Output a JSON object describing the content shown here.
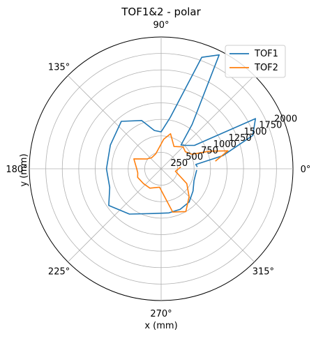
{
  "chart_data": {
    "type": "line",
    "projection": "polar",
    "title": "TOF1&2 - polar",
    "xlabel": "x (mm)",
    "ylabel": "y (mm)",
    "r_range": [
      0,
      2000
    ],
    "r_ticks": [
      250,
      500,
      750,
      1000,
      1250,
      1500,
      1750,
      2000
    ],
    "r_tick_labels": [
      "250",
      "500",
      "750",
      "1000",
      "1250",
      "1500",
      "1750",
      "2000"
    ],
    "theta_ticks": [
      0,
      45,
      90,
      135,
      180,
      225,
      270,
      315
    ],
    "theta_tick_labels": [
      "0°",
      "45°",
      "90°",
      "135°",
      "180°",
      "225°",
      "270°",
      "315°"
    ],
    "grid": true,
    "legend_position": "top-right",
    "series": [
      {
        "name": "TOF1",
        "color": "#1f77b4",
        "points": [
          [
            3,
            550
          ],
          [
            7,
            530
          ],
          [
            12,
            960
          ],
          [
            20,
            1480
          ],
          [
            28,
            1620
          ],
          [
            35,
            620
          ],
          [
            43,
            520
          ],
          [
            50,
            470
          ],
          [
            55,
            820
          ],
          [
            63,
            1940
          ],
          [
            70,
            1800
          ],
          [
            80,
            790
          ],
          [
            90,
            560
          ],
          [
            100,
            590
          ],
          [
            112,
            790
          ],
          [
            130,
            940
          ],
          [
            155,
            850
          ],
          [
            180,
            830
          ],
          [
            200,
            830
          ],
          [
            215,
            970
          ],
          [
            235,
            840
          ],
          [
            260,
            690
          ],
          [
            280,
            680
          ],
          [
            295,
            680
          ],
          [
            310,
            660
          ],
          [
            325,
            590
          ],
          [
            340,
            530
          ],
          [
            358,
            540
          ]
        ]
      },
      {
        "name": "TOF2",
        "color": "#ff7f0e",
        "points": [
          [
            8,
            830
          ],
          [
            15,
            1050
          ],
          [
            20,
            780
          ],
          [
            25,
            520
          ],
          [
            35,
            450
          ],
          [
            45,
            470
          ],
          [
            60,
            390
          ],
          [
            75,
            550
          ],
          [
            85,
            450
          ],
          [
            110,
            240
          ],
          [
            130,
            220
          ],
          [
            145,
            260
          ],
          [
            160,
            440
          ],
          [
            180,
            370
          ],
          [
            190,
            360
          ],
          [
            200,
            380
          ],
          [
            220,
            350
          ],
          [
            240,
            340
          ],
          [
            265,
            280
          ],
          [
            285,
            680
          ],
          [
            300,
            750
          ],
          [
            315,
            600
          ],
          [
            330,
            450
          ],
          [
            350,
            220
          ],
          [
            5,
            300
          ]
        ]
      }
    ]
  }
}
